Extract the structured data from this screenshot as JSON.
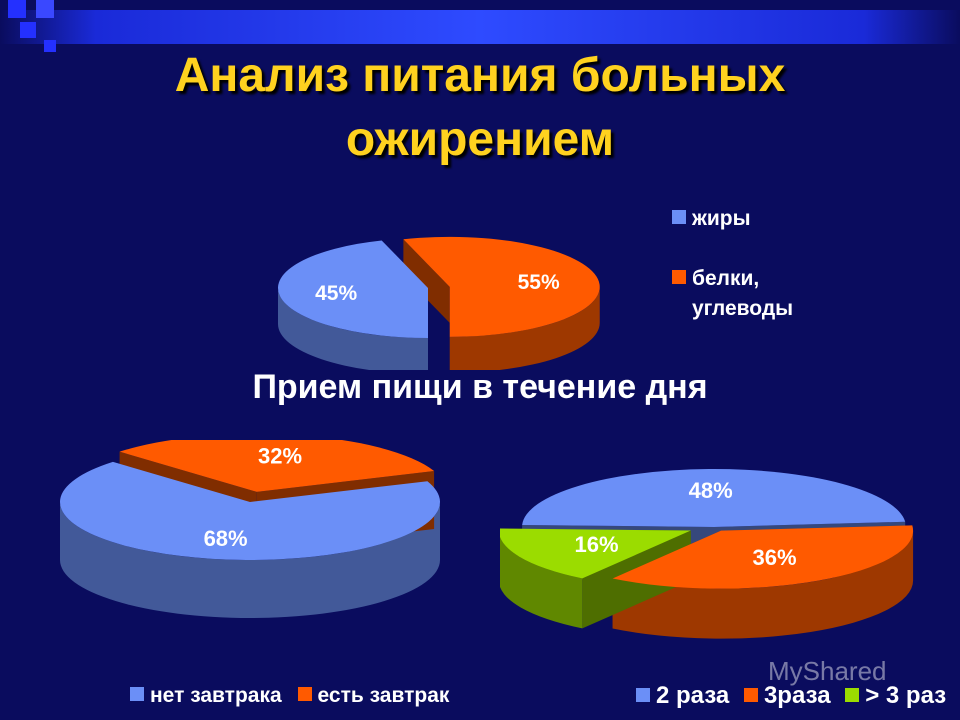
{
  "title": {
    "line1": "Анализ питания больных",
    "line2": "ожирением"
  },
  "subtitle": "Прием пищи в течение дня",
  "watermark": "MyShared",
  "chart_data": [
    {
      "type": "pie",
      "categories": [
        "жиры",
        "белки, углеводы"
      ],
      "values": [
        45,
        55
      ],
      "labels": [
        "45%",
        "55%"
      ],
      "colors": [
        "#6b8ff7",
        "#ff5a00"
      ],
      "legend": {
        "items": [
          "жиры",
          "белки,",
          "углеводы"
        ],
        "placement": "right"
      }
    },
    {
      "type": "pie",
      "categories": [
        "нет завтрака",
        "есть завтрак"
      ],
      "values": [
        68,
        32
      ],
      "labels": [
        "68%",
        "32%"
      ],
      "colors": [
        "#6b8ff7",
        "#ff5a00"
      ],
      "legend": {
        "items": [
          "нет завтрака",
          "есть завтрак"
        ],
        "placement": "bottom"
      }
    },
    {
      "type": "pie",
      "categories": [
        "2 раза",
        "3раза",
        "> 3 раз"
      ],
      "values": [
        48,
        36,
        16
      ],
      "labels": [
        "48%",
        "36%",
        "16%"
      ],
      "colors": [
        "#6b8ff7",
        "#ff5a00",
        "#9bdc00"
      ],
      "legend": {
        "items": [
          "2 раза",
          "3раза",
          "> 3 раз"
        ],
        "placement": "bottom"
      }
    }
  ]
}
